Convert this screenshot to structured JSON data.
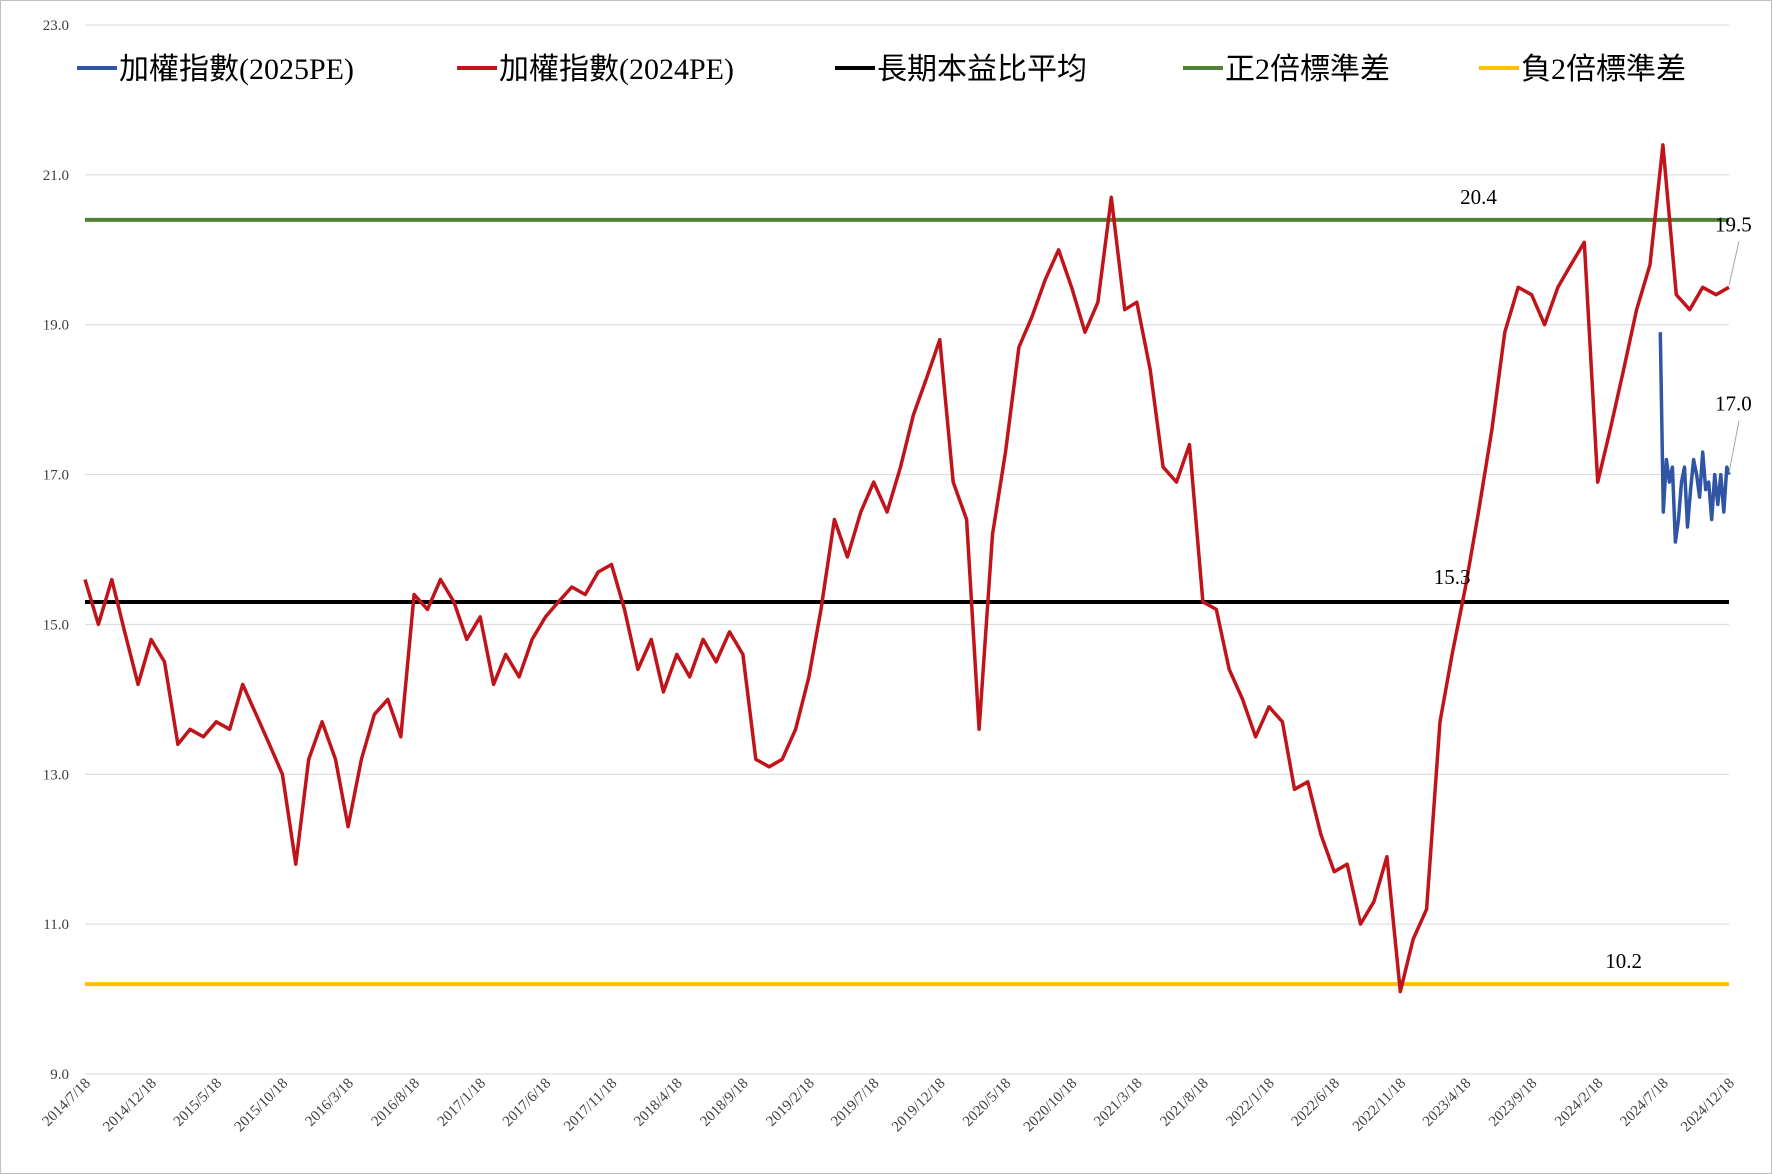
{
  "chart_data": {
    "type": "line",
    "title": "",
    "xlabel": "",
    "ylabel": "",
    "ylim": [
      9.0,
      23.0
    ],
    "yticks": [
      "9.0",
      "11.0",
      "13.0",
      "15.0",
      "17.0",
      "19.0",
      "21.0",
      "23.0"
    ],
    "grid": "horizontal",
    "legend_position": "top",
    "x_start": "2014/7/18",
    "x_end": "2024/12/18",
    "x_tick_labels": [
      "2014/7/18",
      "2014/12/18",
      "2015/5/18",
      "2015/10/18",
      "2016/3/18",
      "2016/8/18",
      "2017/1/18",
      "2017/6/18",
      "2017/11/18",
      "2018/4/18",
      "2018/9/18",
      "2019/2/18",
      "2019/7/18",
      "2019/12/18",
      "2020/5/18",
      "2020/10/18",
      "2021/3/18",
      "2021/8/18",
      "2022/1/18",
      "2022/6/18",
      "2022/11/18",
      "2023/4/18",
      "2023/9/18",
      "2024/2/18",
      "2024/7/18",
      "2024/12/18"
    ],
    "series": [
      {
        "name": "加權指數(2025PE)",
        "color": "#2f55a4",
        "x": [
          "2024/7/12",
          "2024/7/19",
          "2024/7/26",
          "2024/8/2",
          "2024/8/9",
          "2024/8/16",
          "2024/8/23",
          "2024/8/30",
          "2024/9/6",
          "2024/9/13",
          "2024/9/20",
          "2024/9/27",
          "2024/10/4",
          "2024/10/11",
          "2024/10/18",
          "2024/10/25",
          "2024/11/1",
          "2024/11/8",
          "2024/11/15",
          "2024/11/22",
          "2024/11/29",
          "2024/12/6",
          "2024/12/13",
          "2024/12/18"
        ],
        "values": [
          18.9,
          16.5,
          17.2,
          16.9,
          17.1,
          16.1,
          16.4,
          16.9,
          17.1,
          16.3,
          16.8,
          17.2,
          17.0,
          16.7,
          17.3,
          16.8,
          16.9,
          16.4,
          17.0,
          16.6,
          17.0,
          16.5,
          17.1,
          17.0
        ]
      },
      {
        "name": "加權指數(2024PE)",
        "color": "#c0141a",
        "x": [
          "2014/7/18",
          "2014/8/18",
          "2014/9/18",
          "2014/10/18",
          "2014/11/18",
          "2014/12/18",
          "2015/1/18",
          "2015/2/18",
          "2015/3/18",
          "2015/4/18",
          "2015/5/18",
          "2015/6/18",
          "2015/7/18",
          "2015/8/18",
          "2015/9/18",
          "2015/10/18",
          "2015/11/18",
          "2015/12/18",
          "2016/1/18",
          "2016/2/18",
          "2016/3/18",
          "2016/4/18",
          "2016/5/18",
          "2016/6/18",
          "2016/7/18",
          "2016/8/18",
          "2016/9/18",
          "2016/10/18",
          "2016/11/18",
          "2016/12/18",
          "2017/1/18",
          "2017/2/18",
          "2017/3/18",
          "2017/4/18",
          "2017/5/18",
          "2017/6/18",
          "2017/7/18",
          "2017/8/18",
          "2017/9/18",
          "2017/10/18",
          "2017/11/18",
          "2017/12/18",
          "2018/1/18",
          "2018/2/18",
          "2018/3/18",
          "2018/4/18",
          "2018/5/18",
          "2018/6/18",
          "2018/7/18",
          "2018/8/18",
          "2018/9/18",
          "2018/10/18",
          "2018/11/18",
          "2018/12/18",
          "2019/1/18",
          "2019/2/18",
          "2019/3/18",
          "2019/4/18",
          "2019/5/18",
          "2019/6/18",
          "2019/7/18",
          "2019/8/18",
          "2019/9/18",
          "2019/10/18",
          "2019/11/18",
          "2019/12/18",
          "2020/1/18",
          "2020/2/18",
          "2020/3/18",
          "2020/4/18",
          "2020/5/18",
          "2020/6/18",
          "2020/7/18",
          "2020/8/18",
          "2020/9/18",
          "2020/10/18",
          "2020/11/18",
          "2020/12/18",
          "2021/1/18",
          "2021/2/18",
          "2021/3/18",
          "2021/4/18",
          "2021/5/18",
          "2021/6/18",
          "2021/7/18",
          "2021/8/18",
          "2021/9/18",
          "2021/10/18",
          "2021/11/18",
          "2021/12/18",
          "2022/1/18",
          "2022/2/18",
          "2022/3/18",
          "2022/4/18",
          "2022/5/18",
          "2022/6/18",
          "2022/7/18",
          "2022/8/18",
          "2022/9/18",
          "2022/10/18",
          "2022/11/18",
          "2022/12/18",
          "2023/1/18",
          "2023/2/18",
          "2023/3/18",
          "2023/4/18",
          "2023/5/18",
          "2023/6/18",
          "2023/7/18",
          "2023/8/18",
          "2023/9/18",
          "2023/10/18",
          "2023/11/18",
          "2023/12/18",
          "2024/1/18",
          "2024/2/18",
          "2024/3/18",
          "2024/4/18",
          "2024/5/18",
          "2024/6/18",
          "2024/7/18",
          "2024/8/18",
          "2024/9/18",
          "2024/10/18",
          "2024/11/18",
          "2024/12/18"
        ],
        "values": [
          15.6,
          15.0,
          15.6,
          14.9,
          14.2,
          14.8,
          14.5,
          13.4,
          13.6,
          13.5,
          13.7,
          13.6,
          14.2,
          13.8,
          13.4,
          13.0,
          11.8,
          13.2,
          13.7,
          13.2,
          12.3,
          13.2,
          13.8,
          14.0,
          13.5,
          15.4,
          15.2,
          15.6,
          15.3,
          14.8,
          15.1,
          14.2,
          14.6,
          14.3,
          14.8,
          15.1,
          15.3,
          15.5,
          15.4,
          15.7,
          15.8,
          15.2,
          14.4,
          14.8,
          14.1,
          14.6,
          14.3,
          14.8,
          14.5,
          14.9,
          14.6,
          13.2,
          13.1,
          13.2,
          13.6,
          14.3,
          15.2,
          16.4,
          15.9,
          16.5,
          16.9,
          16.5,
          17.1,
          17.8,
          18.3,
          18.8,
          16.9,
          16.4,
          13.6,
          16.2,
          17.3,
          18.7,
          19.1,
          19.6,
          20.0,
          19.5,
          18.9,
          19.3,
          20.7,
          19.2,
          19.3,
          18.4,
          17.1,
          16.9,
          17.4,
          15.3,
          15.2,
          14.4,
          14.0,
          13.5,
          13.9,
          13.7,
          12.8,
          12.9,
          12.2,
          11.7,
          11.8,
          11.0,
          11.3,
          11.9,
          10.1,
          10.8,
          11.2,
          13.7,
          14.6,
          15.5,
          16.5,
          17.6,
          18.9,
          19.5,
          19.4,
          19.0,
          19.5,
          19.8,
          20.1,
          16.9,
          17.6,
          18.4,
          19.2,
          19.8,
          21.4,
          19.4,
          19.2,
          19.5,
          19.4,
          19.5
        ]
      },
      {
        "name": "長期本益比平均",
        "color": "#000000",
        "constant": 15.3
      },
      {
        "name": "正2倍標準差",
        "color": "#538135",
        "constant": 20.4
      },
      {
        "name": "負2倍標準差",
        "color": "#ffc000",
        "constant": 10.2
      }
    ],
    "annotations": [
      {
        "text": "20.4",
        "x": "2023/5/18",
        "y": 20.4
      },
      {
        "text": "15.3",
        "x": "2023/3/18",
        "y": 15.3
      },
      {
        "text": "10.2",
        "x": "2024/4/18",
        "y": 10.2
      },
      {
        "text": "19.5",
        "x": "2024/12/18",
        "y": 19.5
      },
      {
        "text": "17.0",
        "x": "2024/12/18",
        "y": 17.0
      }
    ]
  }
}
